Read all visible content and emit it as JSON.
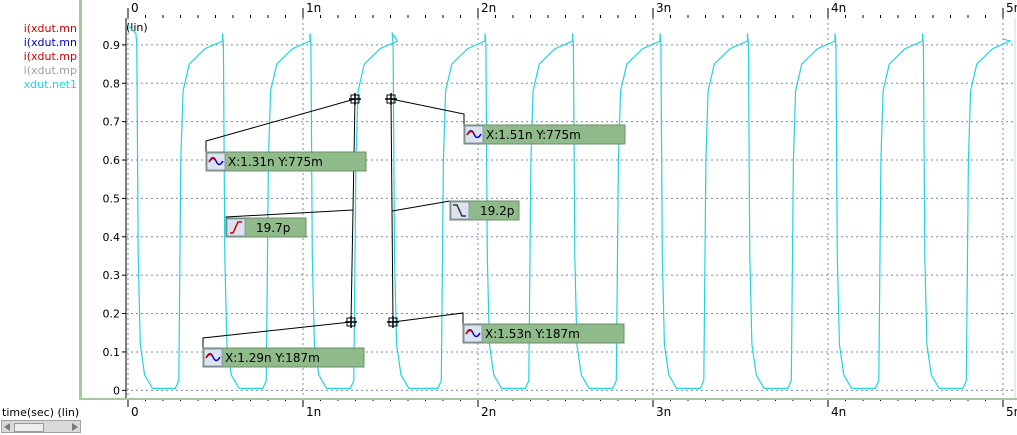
{
  "legend": [
    {
      "label": "i(xdut.mn",
      "color": "#cc0000"
    },
    {
      "label": "i(xdut.mn",
      "color": "#0000cc"
    },
    {
      "label": "i(xdut.mp",
      "color": "#cc0000"
    },
    {
      "label": "i(xdut.mp",
      "color": "#a0a0a0"
    },
    {
      "label": "xdut.net1",
      "color": "#22d3e0"
    }
  ],
  "xlabel": "time(sec) (lin)",
  "ylabel": "(lin)",
  "colors": {
    "trace": "#22d3e0",
    "grid": "#7a8ab0",
    "marker_bg": "#8fba8a",
    "plot_border": "#a6c7a2"
  },
  "chart_data": {
    "type": "line",
    "title": "",
    "xlabel": "time(sec) (lin)",
    "ylabel": "(lin)",
    "xlim": [
      0,
      5e-09
    ],
    "ylim": [
      -0.02,
      0.97
    ],
    "x_ticks": [
      {
        "value": 0,
        "label": "0"
      },
      {
        "value": 1e-09,
        "label": "1n"
      },
      {
        "value": 2e-09,
        "label": "2n"
      },
      {
        "value": 3e-09,
        "label": "3n"
      },
      {
        "value": 4e-09,
        "label": "4n"
      },
      {
        "value": 5e-09,
        "label": "5n"
      }
    ],
    "y_ticks": [
      {
        "value": 0,
        "label": "0"
      },
      {
        "value": 0.1,
        "label": "0.1"
      },
      {
        "value": 0.2,
        "label": "0.2"
      },
      {
        "value": 0.3,
        "label": "0.3"
      },
      {
        "value": 0.4,
        "label": "0.4"
      },
      {
        "value": 0.5,
        "label": "0.5"
      },
      {
        "value": 0.6,
        "label": "0.6"
      },
      {
        "value": 0.7,
        "label": "0.7"
      },
      {
        "value": 0.8,
        "label": "0.8"
      },
      {
        "value": 0.9,
        "label": "0.9"
      }
    ],
    "grid": true,
    "series": [
      {
        "name": "xdut.net1",
        "color": "#22d3e0",
        "period": 5e-10,
        "low": 0.0,
        "high": 0.93,
        "rise_time": 1.97e-11,
        "fall_time": 1.92e-11,
        "rise_at": [
          2.9e-10,
          7.9e-10,
          1.29e-09,
          1.79e-09,
          2.29e-09,
          2.79e-09,
          3.29e-09,
          3.79e-09,
          4.29e-09,
          4.79e-09
        ],
        "fall_at": [
          5e-11,
          5.45e-10,
          1.045e-09,
          1.515e-09,
          2.045e-09,
          2.545e-09,
          3.045e-09,
          3.545e-09,
          4.045e-09,
          4.545e-09
        ]
      }
    ],
    "markers": [
      {
        "x": 1.31e-09,
        "y": 0.775,
        "label": "X:1.31n Y:775m",
        "kind": "point"
      },
      {
        "x": 1.29e-09,
        "y": 0.187,
        "label": "X:1.29n Y:187m",
        "kind": "point"
      },
      {
        "x": 1.51e-09,
        "y": 0.775,
        "label": "X:1.51n Y:775m",
        "kind": "point"
      },
      {
        "x": 1.53e-09,
        "y": 0.187,
        "label": "X:1.53n Y:187m",
        "kind": "point"
      },
      {
        "label": "19.7p",
        "kind": "rise"
      },
      {
        "label": "19.2p",
        "kind": "fall"
      }
    ]
  }
}
